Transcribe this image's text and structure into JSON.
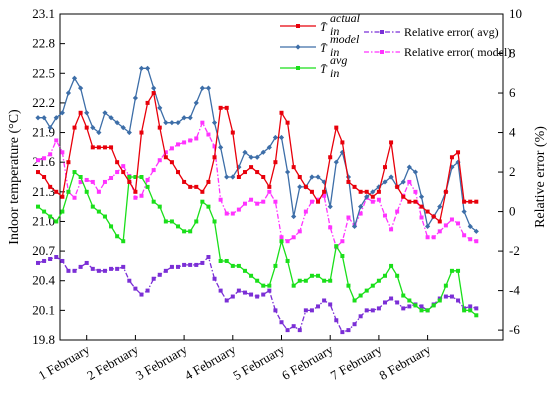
{
  "chart_data": {
    "type": "line",
    "xlabel": "",
    "ylabel_left": "Indoor temperature (°C)",
    "ylabel_right": "Relative error (%)",
    "x_ticks": [
      "1 February",
      "2 February",
      "3 February",
      "4 February",
      "5 February",
      "6 February",
      "7 February",
      "8 February"
    ],
    "ylim_left": [
      19.8,
      23.1
    ],
    "y_ticks_left": [
      "19.8",
      "20.1",
      "20.4",
      "20.7",
      "21.0",
      "21.3",
      "21.6",
      "21.9",
      "22.2",
      "22.5",
      "22.8",
      "23.1"
    ],
    "ylim_right": [
      -6.5,
      10
    ],
    "y_ticks_right": [
      "-6",
      "-4",
      "-2",
      "0",
      "2",
      "4",
      "6",
      "8",
      "10"
    ],
    "grid": false,
    "legend_position": "top-right",
    "x_step_days": 0.125,
    "series": [
      {
        "name": "T̄ in actual",
        "legend": {
          "main": "T̄",
          "sub": "in",
          "sup": "actual"
        },
        "axis": "left",
        "color": "#e8000b",
        "marker": "square",
        "dash": "solid",
        "values": [
          21.5,
          21.45,
          21.35,
          21.3,
          21.25,
          21.6,
          21.95,
          22.1,
          21.95,
          21.75,
          21.75,
          21.75,
          21.75,
          21.6,
          21.5,
          21.4,
          21.3,
          21.9,
          22.2,
          22.3,
          21.95,
          21.65,
          21.6,
          21.5,
          21.4,
          21.35,
          21.35,
          21.3,
          21.4,
          21.65,
          22.15,
          22.15,
          21.9,
          21.45,
          21.5,
          21.55,
          21.5,
          21.45,
          21.35,
          21.6,
          22.1,
          22.0,
          21.55,
          21.45,
          21.35,
          21.3,
          21.2,
          21.3,
          21.65,
          21.95,
          21.8,
          21.4,
          21.35,
          21.3,
          21.3,
          21.25,
          21.3,
          21.55,
          21.8,
          21.35,
          21.25,
          21.2,
          21.2,
          21.15,
          21.1,
          21.05,
          21.0,
          21.3,
          21.65,
          21.7,
          21.2,
          21.2,
          21.2
        ]
      },
      {
        "name": "T̄ in model",
        "legend": {
          "main": "T̄",
          "sub": "in",
          "sup": "model"
        },
        "axis": "left",
        "color": "#3d6ea8",
        "marker": "diamond",
        "dash": "solid",
        "values": [
          22.05,
          22.05,
          21.95,
          22.05,
          22.1,
          22.3,
          22.45,
          22.35,
          22.1,
          21.95,
          21.9,
          22.1,
          22.05,
          22.0,
          21.95,
          21.9,
          22.25,
          22.55,
          22.55,
          22.35,
          22.15,
          22.0,
          22.0,
          22.0,
          22.05,
          22.05,
          22.2,
          22.35,
          22.35,
          22.0,
          21.75,
          21.45,
          21.45,
          21.55,
          21.7,
          21.65,
          21.65,
          21.7,
          21.75,
          21.85,
          21.85,
          21.5,
          21.05,
          21.35,
          21.35,
          21.45,
          21.45,
          21.4,
          21.15,
          21.6,
          21.7,
          21.45,
          20.95,
          21.15,
          21.25,
          21.3,
          21.35,
          21.4,
          21.45,
          21.35,
          21.4,
          21.55,
          21.5,
          21.25,
          20.95,
          21.05,
          21.15,
          21.3,
          21.55,
          21.6,
          21.1,
          20.95,
          20.9
        ]
      },
      {
        "name": "T̄ in avg",
        "legend": {
          "main": "T̄",
          "sub": "in",
          "sup": "avg"
        },
        "axis": "left",
        "color": "#1adf1a",
        "marker": "square",
        "dash": "solid",
        "values": [
          21.15,
          21.1,
          21.05,
          21.0,
          21.1,
          21.3,
          21.5,
          21.45,
          21.3,
          21.15,
          21.1,
          21.05,
          20.95,
          20.85,
          20.8,
          21.45,
          21.45,
          21.45,
          21.35,
          21.2,
          21.15,
          21.0,
          21.0,
          20.95,
          20.9,
          20.9,
          21.0,
          21.2,
          21.15,
          21.0,
          20.6,
          20.6,
          20.55,
          20.55,
          20.5,
          20.45,
          20.4,
          20.35,
          20.35,
          20.55,
          20.8,
          20.6,
          20.35,
          20.4,
          20.4,
          20.45,
          20.45,
          20.4,
          20.4,
          20.75,
          20.65,
          20.35,
          20.2,
          20.25,
          20.3,
          20.35,
          20.4,
          20.45,
          20.55,
          20.45,
          20.25,
          20.2,
          20.15,
          20.1,
          20.1,
          20.15,
          20.2,
          20.35,
          20.5,
          20.5,
          20.1,
          20.1,
          20.05
        ]
      },
      {
        "name": "Relative error( avg)",
        "axis": "right",
        "color": "#7b2fd6",
        "marker": "square",
        "dash": "dashdot",
        "values": [
          -2.6,
          -2.5,
          -2.4,
          -2.3,
          -2.5,
          -3.0,
          -3.0,
          -2.8,
          -2.6,
          -2.9,
          -3.0,
          -3.0,
          -2.9,
          -2.9,
          -2.8,
          -3.5,
          -3.9,
          -4.2,
          -4.0,
          -3.4,
          -3.2,
          -3.0,
          -2.8,
          -2.8,
          -2.7,
          -2.7,
          -2.7,
          -2.6,
          -2.3,
          -3.4,
          -4.0,
          -4.5,
          -4.3,
          -4.0,
          -4.1,
          -4.2,
          -4.3,
          -4.2,
          -4.0,
          -5.0,
          -5.6,
          -6.0,
          -5.8,
          -6.0,
          -5.0,
          -5.0,
          -4.8,
          -4.5,
          -4.7,
          -5.5,
          -6.1,
          -6.0,
          -5.7,
          -5.3,
          -5.0,
          -5.0,
          -4.9,
          -4.6,
          -4.4,
          -4.6,
          -4.9,
          -4.8,
          -4.7,
          -4.8,
          -5.0,
          -4.7,
          -4.4,
          -4.3,
          -4.3,
          -4.5,
          -4.9,
          -4.8,
          -4.9
        ]
      },
      {
        "name": "Relative error( model)",
        "axis": "right",
        "color": "#ff33ff",
        "marker": "square",
        "dash": "dashdot",
        "values": [
          2.6,
          2.7,
          2.9,
          3.6,
          3.0,
          1.0,
          0.7,
          1.5,
          1.6,
          1.5,
          1.0,
          1.5,
          1.7,
          2.0,
          2.3,
          1.8,
          0.7,
          0.8,
          1.6,
          2.1,
          2.6,
          3.0,
          3.2,
          3.4,
          3.5,
          3.6,
          3.7,
          4.5,
          3.9,
          3.3,
          0.6,
          -0.1,
          -0.1,
          0.1,
          0.4,
          0.6,
          0.4,
          0.5,
          1.0,
          0.5,
          -1.3,
          -1.5,
          -1.3,
          -1.0,
          0.0,
          0.5,
          0.6,
          0.8,
          -0.8,
          -1.8,
          -1.5,
          -0.3,
          -0.7,
          -0.1,
          0.7,
          0.5,
          0.6,
          -0.2,
          -0.9,
          0.0,
          0.8,
          1.5,
          1.0,
          -0.3,
          -1.3,
          -1.3,
          -1.0,
          -0.7,
          -0.4,
          -0.6,
          -1.2,
          -1.4,
          -1.5
        ]
      }
    ]
  }
}
